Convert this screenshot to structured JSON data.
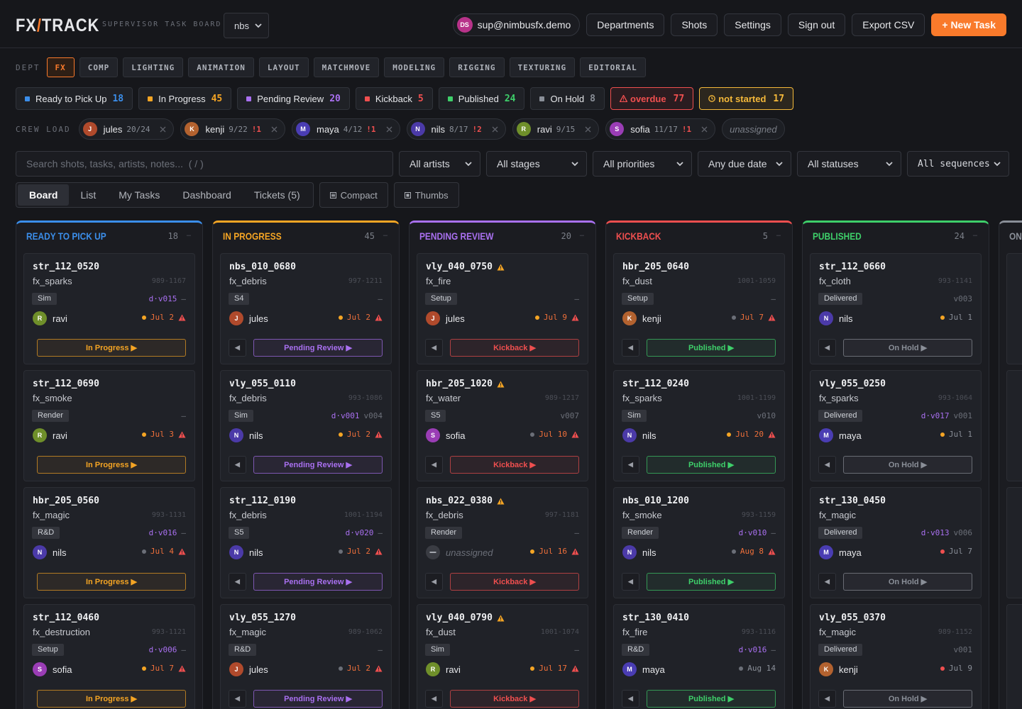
{
  "header": {
    "logo": {
      "left": "FX",
      "slash": "/",
      "right": "TRACK"
    },
    "subtitle": "SUPERVISOR TASK BOARD",
    "project": "nbs",
    "user_initials": "DS",
    "user_email": "sup@nimbusfx.demo",
    "nav": [
      "Departments",
      "Shots",
      "Settings",
      "Sign out",
      "Export CSV"
    ],
    "new_task": "+ New Task"
  },
  "departments": {
    "label": "DEPT",
    "active": 0,
    "items": [
      "FX",
      "COMP",
      "LIGHTING",
      "ANIMATION",
      "LAYOUT",
      "MATCHMOVE",
      "MODELING",
      "RIGGING",
      "TEXTURING",
      "EDITORIAL"
    ]
  },
  "status_summary": [
    {
      "label": "Ready to Pick Up",
      "count": 18,
      "color": "#3b8eea"
    },
    {
      "label": "In Progress",
      "count": 45,
      "color": "#f5a524"
    },
    {
      "label": "Pending Review",
      "count": 20,
      "color": "#a970f0"
    },
    {
      "label": "Kickback",
      "count": 5,
      "color": "#ef4f4f"
    },
    {
      "label": "Published",
      "count": 24,
      "color": "#3ecf6a"
    },
    {
      "label": "On Hold",
      "count": 8,
      "color": "#8a8f98"
    }
  ],
  "alerts": [
    {
      "label": "overdue",
      "count": 77,
      "color": "#ef4f4f",
      "icon": "warning"
    },
    {
      "label": "not started",
      "count": 17,
      "color": "#f5b93a",
      "icon": "clock"
    }
  ],
  "crew_load": {
    "label": "CREW LOAD",
    "unassigned": "unassigned",
    "members": [
      {
        "initial": "J",
        "name": "jules",
        "load": "20/24",
        "flag": null,
        "color": "#b04a2c"
      },
      {
        "initial": "K",
        "name": "kenji",
        "load": "9/22",
        "flag": "!1",
        "color": "#b3622f"
      },
      {
        "initial": "M",
        "name": "maya",
        "load": "4/12",
        "flag": "!1",
        "color": "#4a3db3"
      },
      {
        "initial": "N",
        "name": "nils",
        "load": "8/17",
        "flag": "!2",
        "color": "#4b3aa8"
      },
      {
        "initial": "R",
        "name": "ravi",
        "load": "9/15",
        "flag": null,
        "color": "#6f8f2a"
      },
      {
        "initial": "S",
        "name": "sofia",
        "load": "11/17",
        "flag": "!1",
        "color": "#9a3db5"
      }
    ]
  },
  "filters": {
    "search_placeholder": "Search shots, tasks, artists, notes...  ( / )",
    "selects": [
      "All artists",
      "All stages",
      "All priorities",
      "Any due date",
      "All statuses",
      "All sequences"
    ]
  },
  "view_tabs": {
    "active": 0,
    "tabs": [
      "Board",
      "List",
      "My Tasks",
      "Dashboard",
      "Tickets (5)"
    ],
    "toggles": [
      "Compact",
      "Thumbs"
    ]
  },
  "board": {
    "collapse_icon": "–",
    "columns": [
      {
        "title": "READY TO PICK UP",
        "count": 18,
        "color": "#3b8eea",
        "back": null,
        "next": "In Progress ▶",
        "cards": [
          {
            "shot": "str_112_0520",
            "task": "fx_sparks",
            "frames": "989-1167",
            "stage": "Sim",
            "draft": "d·v015",
            "version": "–",
            "assignee": "ravi",
            "due": "Jul 2",
            "dot": "#f5a524",
            "overdue": true,
            "flag": false
          },
          {
            "shot": "str_112_0690",
            "task": "fx_smoke",
            "frames": null,
            "stage": "Render",
            "draft": null,
            "version": "–",
            "assignee": "ravi",
            "due": "Jul 3",
            "dot": "#f5a524",
            "overdue": true,
            "flag": false
          },
          {
            "shot": "hbr_205_0560",
            "task": "fx_magic",
            "frames": "993-1131",
            "stage": "R&D",
            "draft": "d·v016",
            "version": "–",
            "assignee": "nils",
            "due": "Jul 4",
            "dot": "#6b6f78",
            "overdue": true,
            "flag": false
          },
          {
            "shot": "str_112_0460",
            "task": "fx_destruction",
            "frames": "993-1121",
            "stage": "Setup",
            "draft": "d·v006",
            "version": "–",
            "assignee": "sofia",
            "due": "Jul 7",
            "dot": "#f5a524",
            "overdue": true,
            "flag": false
          }
        ]
      },
      {
        "title": "IN PROGRESS",
        "count": 45,
        "color": "#f5a524",
        "back": "◀",
        "next": "Pending Review ▶",
        "cards": [
          {
            "shot": "nbs_010_0680",
            "task": "fx_debris",
            "frames": "997-1211",
            "stage": "S4",
            "draft": null,
            "version": "–",
            "assignee": "jules",
            "due": "Jul 2",
            "dot": "#f5a524",
            "overdue": true,
            "flag": false
          },
          {
            "shot": "vly_055_0110",
            "task": "fx_debris",
            "frames": "993-1086",
            "stage": "Sim",
            "draft": "d·v001",
            "version": "v004",
            "assignee": "nils",
            "due": "Jul 2",
            "dot": "#f5a524",
            "overdue": true,
            "flag": false
          },
          {
            "shot": "str_112_0190",
            "task": "fx_debris",
            "frames": "1001-1194",
            "stage": "S5",
            "draft": "d·v020",
            "version": "–",
            "assignee": "nils",
            "due": "Jul 2",
            "dot": "#6b6f78",
            "overdue": true,
            "flag": false
          },
          {
            "shot": "vly_055_1270",
            "task": "fx_magic",
            "frames": "989-1062",
            "stage": "R&D",
            "draft": null,
            "version": "–",
            "assignee": "jules",
            "due": "Jul 2",
            "dot": "#6b6f78",
            "overdue": true,
            "flag": false
          }
        ]
      },
      {
        "title": "PENDING REVIEW",
        "count": 20,
        "color": "#a970f0",
        "back": "◀",
        "next": "Kickback ▶",
        "cards": [
          {
            "shot": "vly_040_0750",
            "task": "fx_fire",
            "frames": null,
            "stage": "Setup",
            "draft": null,
            "version": "–",
            "assignee": "jules",
            "due": "Jul 9",
            "dot": "#f5a524",
            "overdue": true,
            "flag": true
          },
          {
            "shot": "hbr_205_1020",
            "task": "fx_water",
            "frames": "989-1217",
            "stage": "S5",
            "draft": null,
            "version": "v007",
            "assignee": "sofia",
            "due": "Jul 10",
            "dot": "#6b6f78",
            "overdue": true,
            "flag": true
          },
          {
            "shot": "nbs_022_0380",
            "task": "fx_debris",
            "frames": "997-1181",
            "stage": "Render",
            "draft": null,
            "version": "–",
            "assignee": null,
            "due": "Jul 16",
            "dot": "#f5a524",
            "overdue": true,
            "flag": true
          },
          {
            "shot": "vly_040_0790",
            "task": "fx_dust",
            "frames": "1001-1074",
            "stage": "Sim",
            "draft": null,
            "version": "–",
            "assignee": "ravi",
            "due": "Jul 17",
            "dot": "#f5a524",
            "overdue": true,
            "flag": true
          }
        ]
      },
      {
        "title": "KICKBACK",
        "count": 5,
        "color": "#ef4f4f",
        "back": "◀",
        "next": "Published ▶",
        "cards": [
          {
            "shot": "hbr_205_0640",
            "task": "fx_dust",
            "frames": "1001-1059",
            "stage": "Setup",
            "draft": null,
            "version": "–",
            "assignee": "kenji",
            "due": "Jul 7",
            "dot": "#6b6f78",
            "overdue": true,
            "flag": false
          },
          {
            "shot": "str_112_0240",
            "task": "fx_sparks",
            "frames": "1001-1199",
            "stage": "Sim",
            "draft": null,
            "version": "v010",
            "assignee": "nils",
            "due": "Jul 20",
            "dot": "#f5a524",
            "overdue": true,
            "flag": false
          },
          {
            "shot": "nbs_010_1200",
            "task": "fx_smoke",
            "frames": "993-1159",
            "stage": "Render",
            "draft": "d·v010",
            "version": "–",
            "assignee": "nils",
            "due": "Aug 8",
            "dot": "#6b6f78",
            "overdue": true,
            "flag": false
          },
          {
            "shot": "str_130_0410",
            "task": "fx_fire",
            "frames": "993-1116",
            "stage": "R&D",
            "draft": "d·v016",
            "version": "–",
            "assignee": "maya",
            "due": "Aug 14",
            "dot": "#6b6f78",
            "overdue": false,
            "flag": false
          }
        ]
      },
      {
        "title": "PUBLISHED",
        "count": 24,
        "color": "#3ecf6a",
        "back": "◀",
        "next": "On Hold ▶",
        "cards": [
          {
            "shot": "str_112_0660",
            "task": "fx_cloth",
            "frames": "993-1141",
            "stage": "Delivered",
            "draft": null,
            "version": "v003",
            "assignee": "nils",
            "due": "Jul 1",
            "dot": "#f5a524",
            "overdue": false,
            "flag": false
          },
          {
            "shot": "vly_055_0250",
            "task": "fx_sparks",
            "frames": "993-1064",
            "stage": "Delivered",
            "draft": "d·v017",
            "version": "v001",
            "assignee": "maya",
            "due": "Jul 1",
            "dot": "#f5a524",
            "overdue": false,
            "flag": false
          },
          {
            "shot": "str_130_0450",
            "task": "fx_magic",
            "frames": null,
            "stage": "Delivered",
            "draft": "d·v013",
            "version": "v006",
            "assignee": "maya",
            "due": "Jul 7",
            "dot": "#ef4f4f",
            "overdue": false,
            "flag": false
          },
          {
            "shot": "vly_055_0370",
            "task": "fx_magic",
            "frames": "989-1152",
            "stage": "Delivered",
            "draft": null,
            "version": "v001",
            "assignee": "kenji",
            "due": "Jul 9",
            "dot": "#ef4f4f",
            "overdue": false,
            "flag": false
          }
        ]
      },
      {
        "title": "ON HOLD",
        "count": null,
        "color": "#8a8f98",
        "back": null,
        "next": null,
        "cards": []
      }
    ]
  }
}
